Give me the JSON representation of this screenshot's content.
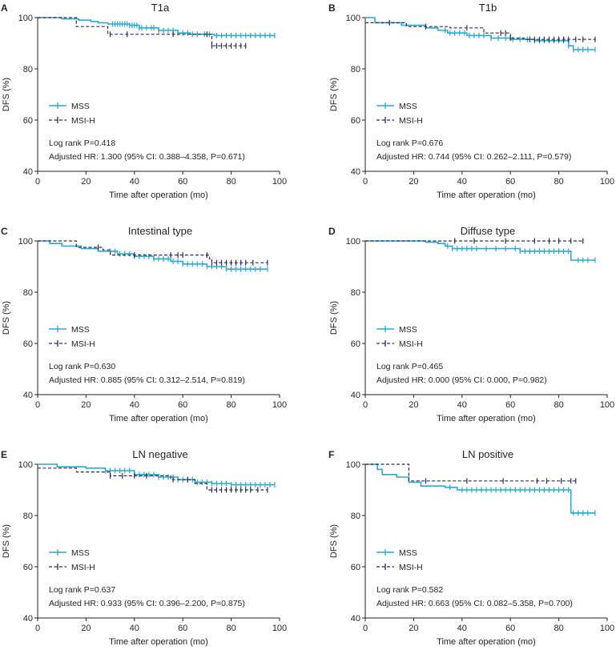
{
  "colors": {
    "mss": "#29a9d6",
    "msi": "#2b2a5e",
    "axis": "#231f20",
    "text": "#231f20"
  },
  "chart_data": [
    {
      "type": "line",
      "panel": "A",
      "title": "T1a",
      "xlabel": "Time after operation (mo)",
      "ylabel": "DFS (%)",
      "xlim": [
        0,
        100
      ],
      "ylim": [
        40,
        100
      ],
      "xticks": [
        0,
        20,
        40,
        60,
        80,
        100
      ],
      "yticks": [
        40,
        60,
        80,
        100
      ],
      "legend": [
        "MSS",
        "MSI-H"
      ],
      "stats": [
        "Log rank P=0.418",
        "Adjusted HR: 1.300 (95% CI: 0.388–4.358, P=0.671)"
      ],
      "series": [
        {
          "name": "MSS",
          "style": "solid",
          "steps": [
            [
              0,
              100
            ],
            [
              10,
              99.5
            ],
            [
              17,
              99
            ],
            [
              22,
              98.5
            ],
            [
              25,
              98
            ],
            [
              29,
              97.5
            ],
            [
              38,
              97
            ],
            [
              42,
              96
            ],
            [
              50,
              95
            ],
            [
              58,
              94
            ],
            [
              63,
              93.5
            ],
            [
              73,
              93
            ]
          ],
          "end": 98,
          "censors": [
            31,
            32,
            33,
            34,
            35,
            36,
            37,
            38,
            39,
            40,
            41,
            42,
            43,
            45,
            47,
            48,
            50,
            52,
            54,
            56,
            58,
            60,
            62,
            64,
            66,
            69,
            71,
            74,
            76,
            78,
            80,
            82,
            84,
            86,
            88,
            90,
            92,
            94,
            96,
            98
          ]
        },
        {
          "name": "MSI-H",
          "style": "dashed",
          "steps": [
            [
              0,
              100
            ],
            [
              16,
              96.5
            ],
            [
              29,
              93.5
            ],
            [
              72,
              89
            ]
          ],
          "end": 86,
          "censors": [
            30,
            37,
            56,
            70,
            72,
            74,
            76,
            78,
            80,
            82,
            84,
            86
          ]
        }
      ]
    },
    {
      "type": "line",
      "panel": "B",
      "title": "T1b",
      "xlabel": "Time after operation (mo)",
      "ylabel": "DFS (%)",
      "xlim": [
        0,
        100
      ],
      "ylim": [
        40,
        100
      ],
      "xticks": [
        0,
        20,
        40,
        60,
        80,
        100
      ],
      "yticks": [
        40,
        60,
        80,
        100
      ],
      "legend": [
        "MSS",
        "MSI-H"
      ],
      "stats": [
        "Log rank P=0.676",
        "Adjusted HR: 0.744 (95% CI: 0.262–2.111, P=0.579)"
      ],
      "series": [
        {
          "name": "MSS",
          "style": "solid",
          "steps": [
            [
              0,
              100
            ],
            [
              4,
              98
            ],
            [
              15,
              97
            ],
            [
              25,
              96
            ],
            [
              30,
              95
            ],
            [
              34,
              94
            ],
            [
              42,
              93
            ],
            [
              52,
              92
            ],
            [
              60,
              91.5
            ],
            [
              70,
              91
            ],
            [
              84,
              89
            ],
            [
              86,
              87.5
            ]
          ],
          "end": 95,
          "censors": [
            33,
            35,
            37,
            39,
            41,
            43,
            45,
            47,
            49,
            52,
            55,
            58,
            61,
            64,
            67,
            70,
            72,
            74,
            76,
            78,
            80,
            82,
            84,
            86,
            88,
            90,
            92,
            95
          ]
        },
        {
          "name": "MSI-H",
          "style": "dashed",
          "steps": [
            [
              0,
              98
            ],
            [
              17,
              96.5
            ],
            [
              35,
              96
            ],
            [
              49,
              94
            ],
            [
              60,
              92
            ],
            [
              66,
              91.5
            ]
          ],
          "end": 95,
          "censors": [
            10,
            25,
            42,
            56,
            58,
            60,
            68,
            70,
            72,
            74,
            76,
            78,
            80,
            82,
            84,
            87,
            90,
            95
          ]
        }
      ]
    },
    {
      "type": "line",
      "panel": "C",
      "title": "Intestinal type",
      "xlabel": "Time after operation (mo)",
      "ylabel": "DFS (%)",
      "xlim": [
        0,
        100
      ],
      "ylim": [
        40,
        100
      ],
      "xticks": [
        0,
        20,
        40,
        60,
        80,
        100
      ],
      "yticks": [
        40,
        60,
        80,
        100
      ],
      "legend": [
        "MSS",
        "MSI-H"
      ],
      "stats": [
        "Log rank P=0.630",
        "Adjusted HR: 0.885 (95% CI: 0.312–2.514, P=0.819)"
      ],
      "series": [
        {
          "name": "MSS",
          "style": "solid",
          "steps": [
            [
              0,
              100
            ],
            [
              5,
              99
            ],
            [
              10,
              98
            ],
            [
              18,
              97
            ],
            [
              25,
              96
            ],
            [
              33,
              95
            ],
            [
              40,
              94
            ],
            [
              48,
              93
            ],
            [
              55,
              92
            ],
            [
              60,
              91
            ],
            [
              70,
              90
            ],
            [
              78,
              89
            ]
          ],
          "end": 95,
          "censors": [
            30,
            32,
            34,
            36,
            38,
            40,
            42,
            44,
            46,
            48,
            50,
            52,
            54,
            56,
            58,
            60,
            62,
            64,
            66,
            68,
            70,
            72,
            74,
            76,
            78,
            80,
            82,
            84,
            86,
            88,
            90,
            92,
            95
          ]
        },
        {
          "name": "MSI-H",
          "style": "dashed",
          "steps": [
            [
              0,
              100
            ],
            [
              16,
              97.5
            ],
            [
              27,
              96.5
            ],
            [
              30,
              94.5
            ],
            [
              71,
              93
            ],
            [
              72,
              91.5
            ]
          ],
          "end": 95,
          "censors": [
            25,
            40,
            55,
            58,
            60,
            70,
            72,
            74,
            76,
            78,
            80,
            82,
            84,
            86,
            89,
            95
          ]
        }
      ]
    },
    {
      "type": "line",
      "panel": "D",
      "title": "Diffuse type",
      "xlabel": "Time after operation (mo)",
      "ylabel": "DFS (%)",
      "xlim": [
        0,
        100
      ],
      "ylim": [
        40,
        100
      ],
      "xticks": [
        0,
        20,
        40,
        60,
        80,
        100
      ],
      "yticks": [
        40,
        60,
        80,
        100
      ],
      "legend": [
        "MSS",
        "MSI-H"
      ],
      "stats": [
        "Log rank P=0.465",
        "Adjusted HR: 0.000 (95% CI: 0.000, P=0.982)"
      ],
      "series": [
        {
          "name": "MSS",
          "style": "solid",
          "steps": [
            [
              0,
              100
            ],
            [
              25,
              99.5
            ],
            [
              30,
              99
            ],
            [
              33,
              98
            ],
            [
              36,
              97
            ],
            [
              64,
              96
            ],
            [
              85,
              92.5
            ]
          ],
          "end": 95,
          "censors": [
            34,
            36,
            38,
            40,
            42,
            44,
            46,
            50,
            54,
            58,
            62,
            64,
            66,
            68,
            70,
            72,
            74,
            76,
            78,
            80,
            82,
            84,
            88,
            90,
            92,
            95
          ]
        },
        {
          "name": "MSI-H",
          "style": "dashed",
          "steps": [
            [
              0,
              100
            ]
          ],
          "end": 90,
          "censors": [
            37,
            45,
            58,
            70,
            76,
            80,
            85,
            90
          ]
        }
      ]
    },
    {
      "type": "line",
      "panel": "E",
      "title": "LN negative",
      "xlabel": "Time after operation (mo)",
      "ylabel": "DFS (%)",
      "xlim": [
        0,
        100
      ],
      "ylim": [
        40,
        100
      ],
      "xticks": [
        0,
        20,
        40,
        60,
        80,
        100
      ],
      "yticks": [
        40,
        60,
        80,
        100
      ],
      "legend": [
        "MSS",
        "MSI-H"
      ],
      "stats": [
        "Log rank P=0.637",
        "Adjusted HR: 0.933 (95% CI: 0.396–2.200, P=0.875)"
      ],
      "series": [
        {
          "name": "MSS",
          "style": "solid",
          "steps": [
            [
              0,
              100
            ],
            [
              8,
              99
            ],
            [
              20,
              98.5
            ],
            [
              28,
              97.5
            ],
            [
              40,
              96
            ],
            [
              50,
              95
            ],
            [
              58,
              94
            ],
            [
              65,
              93
            ],
            [
              72,
              92.5
            ],
            [
              80,
              92
            ]
          ],
          "end": 98,
          "censors": [
            28,
            30,
            32,
            34,
            36,
            38,
            40,
            42,
            44,
            46,
            48,
            50,
            52,
            54,
            56,
            58,
            60,
            62,
            64,
            66,
            68,
            70,
            72,
            74,
            76,
            78,
            80,
            82,
            84,
            86,
            88,
            90,
            92,
            94,
            96,
            98
          ]
        },
        {
          "name": "MSI-H",
          "style": "dashed",
          "steps": [
            [
              0,
              98.5
            ],
            [
              16,
              97
            ],
            [
              30,
              95.5
            ],
            [
              55,
              94
            ],
            [
              65,
              92.5
            ],
            [
              70,
              90
            ]
          ],
          "end": 95,
          "censors": [
            30,
            35,
            40,
            45,
            56,
            62,
            72,
            74,
            76,
            78,
            80,
            82,
            84,
            86,
            88,
            91,
            95
          ]
        }
      ]
    },
    {
      "type": "line",
      "panel": "F",
      "title": "LN positive",
      "xlabel": "Time after operation (mo)",
      "ylabel": "DFS (%)",
      "xlim": [
        0,
        100
      ],
      "ylim": [
        40,
        100
      ],
      "xticks": [
        0,
        20,
        40,
        60,
        80,
        100
      ],
      "yticks": [
        40,
        60,
        80,
        100
      ],
      "legend": [
        "MSS",
        "MSI-H"
      ],
      "stats": [
        "Log rank P=0.582",
        "Adjusted HR: 0.663 (95% CI: 0.082–5.358, P=0.700)"
      ],
      "series": [
        {
          "name": "MSS",
          "style": "solid",
          "steps": [
            [
              0,
              100
            ],
            [
              5,
              98
            ],
            [
              7,
              96
            ],
            [
              13,
              95
            ],
            [
              18,
              93
            ],
            [
              23,
              91.5
            ],
            [
              33,
              91
            ],
            [
              38,
              90
            ],
            [
              85,
              81
            ]
          ],
          "end": 95,
          "censors": [
            35,
            40,
            42,
            44,
            46,
            48,
            50,
            52,
            54,
            56,
            58,
            60,
            62,
            64,
            66,
            68,
            70,
            72,
            74,
            76,
            78,
            80,
            82,
            84,
            86,
            88,
            90,
            92,
            95
          ]
        },
        {
          "name": "MSI-H",
          "style": "dashed",
          "steps": [
            [
              0,
              100
            ],
            [
              18,
              93.5
            ]
          ],
          "end": 87,
          "censors": [
            25,
            42,
            57,
            71,
            75,
            81,
            85,
            87
          ]
        }
      ]
    }
  ]
}
